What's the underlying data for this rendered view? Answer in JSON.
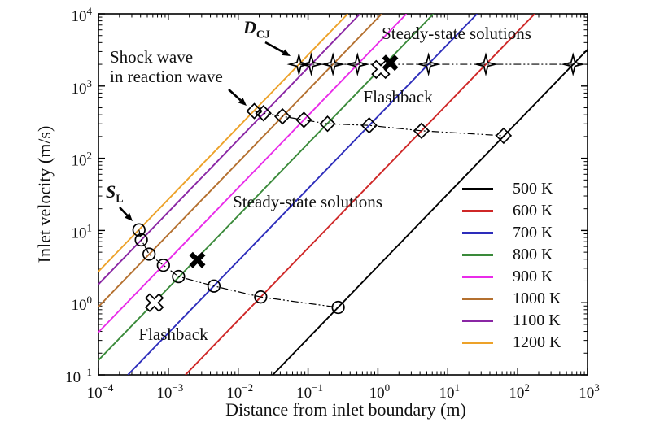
{
  "chart_data": {
    "type": "line",
    "title": "",
    "xlabel": "Distance from inlet boundary (m)",
    "ylabel": "Inlet velocity (m/s)",
    "x_scale": "log",
    "y_scale": "log",
    "xlim": [
      0.0001,
      1000
    ],
    "ylim": [
      0.1,
      10000
    ],
    "x_tick_exponents": [
      -4,
      -3,
      -2,
      -1,
      0,
      1,
      2,
      3
    ],
    "y_tick_exponents": [
      -1,
      0,
      1,
      2,
      3,
      4
    ],
    "grid": false,
    "legend_position": "lower right",
    "series": [
      {
        "label": "500 K",
        "color": "#000000",
        "v_over_d": 3.2,
        "steady_flame": [
          0.27,
          0.86
        ],
        "shock_in_reaction": [
          63,
          205
        ],
        "detonation": [
          620,
          2000
        ]
      },
      {
        "label": "600 K",
        "color": "#cf2727",
        "v_over_d": 57,
        "steady_flame": [
          0.021,
          1.2
        ],
        "shock_in_reaction": [
          4.2,
          240
        ],
        "detonation": [
          35,
          2000
        ]
      },
      {
        "label": "700 K",
        "color": "#2d2dbb",
        "v_over_d": 380,
        "steady_flame": [
          0.0045,
          1.7
        ],
        "shock_in_reaction": [
          0.75,
          285
        ],
        "detonation": [
          5.3,
          2000
        ]
      },
      {
        "label": "800 K",
        "color": "#3a8a3a",
        "v_over_d": 1600,
        "steady_flame": [
          0.0014,
          2.3
        ],
        "shock_in_reaction": [
          0.19,
          300
        ],
        "detonation": null
      },
      {
        "label": "900 K",
        "color": "#e92be9",
        "v_over_d": 3900,
        "steady_flame": [
          0.00085,
          3.3
        ],
        "shock_in_reaction": [
          0.087,
          340
        ],
        "detonation": [
          0.51,
          2000
        ]
      },
      {
        "label": "1000 K",
        "color": "#b4702f",
        "v_over_d": 8800,
        "steady_flame": [
          0.00053,
          4.7
        ],
        "shock_in_reaction": [
          0.043,
          380
        ],
        "detonation": [
          0.227,
          2000
        ]
      },
      {
        "label": "1100 K",
        "color": "#8a26a4",
        "v_over_d": 18000,
        "steady_flame": [
          0.00041,
          7.4
        ],
        "shock_in_reaction": [
          0.023,
          420
        ],
        "detonation": [
          0.111,
          2000
        ]
      },
      {
        "label": "1200 K",
        "color": "#eda229",
        "v_over_d": 27000,
        "steady_flame": [
          0.00038,
          10.2
        ],
        "shock_in_reaction": [
          0.017,
          450
        ],
        "detonation": [
          0.074,
          2000
        ]
      }
    ],
    "failed_cases": {
      "filled_x": [
        [
          0.0026,
          3.9
        ],
        [
          1.5,
          2100
        ]
      ],
      "open_x": [
        [
          0.00063,
          1.0
        ],
        [
          1.1,
          1700
        ]
      ]
    },
    "annotations": {
      "dcj": {
        "main": "D",
        "sub": "CJ"
      },
      "sl": {
        "main": "S",
        "sub": "L"
      },
      "shock_wave": "Shock wave\nin reaction wave",
      "steady_state_top": "Steady-state solutions",
      "steady_state_mid": "Steady-state solutions",
      "flashback_top": "Flashback",
      "flashback_bottom": "Flashback"
    },
    "detonation_velocity_label_value": 2000,
    "marker_meaning": {
      "circle": "steady laminar flame (S_L branch)",
      "diamond": "shock wave in reaction wave branch",
      "star": "detonation (D_CJ) branch",
      "x": "failed / flashback case"
    }
  }
}
